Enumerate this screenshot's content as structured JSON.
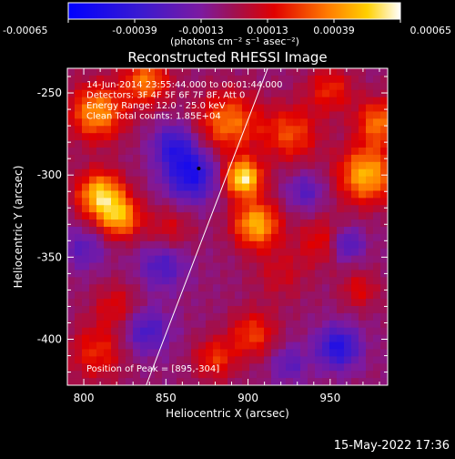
{
  "chart_data": {
    "type": "heatmap",
    "title": "Reconstructed RHESSI Image",
    "xlabel": "Heliocentric X (arcsec)",
    "ylabel": "Heliocentric Y (arcsec)",
    "xlim": [
      790,
      985
    ],
    "ylim": [
      -428,
      -235
    ],
    "x_ticks": [
      "800",
      "850",
      "900",
      "950"
    ],
    "x_tick_values": [
      800,
      850,
      900,
      950
    ],
    "y_ticks": [
      "-250",
      "-300",
      "-350",
      "-400"
    ],
    "y_tick_values": [
      -250,
      -300,
      -350,
      -400
    ],
    "colorbar": {
      "min": -0.00065,
      "max": 0.00065,
      "ticks": [
        "-0.00065",
        "-0.00039",
        "-0.00013",
        "0.00013",
        "0.00039",
        "0.00065"
      ],
      "tick_values": [
        -0.00065,
        -0.00039,
        -0.00013,
        0.00013,
        0.00039,
        0.00065
      ],
      "units": "(photons cm⁻² s⁻¹ asec⁻²)"
    },
    "annotations": [
      "14-Jun-2014 23:55:44.000 to 00:01:44.000",
      "Detectors: 3F 4F 5F 6F 7F 8F, Att 0",
      "Energy Range: 12.0 - 25.0 keV",
      "Clean     Total counts: 1.85E+04"
    ],
    "peak_label": "Position of Peak = [895,-304]",
    "peak_position": [
      895,
      -304
    ],
    "limb_line": [
      [
        838,
        -428
      ],
      [
        912,
        -235
      ]
    ],
    "blobs": [
      {
        "x": 897,
        "y": -302,
        "sigma": 8,
        "value": 0.00065
      },
      {
        "x": 905,
        "y": -330,
        "sigma": 10,
        "value": 0.00052
      },
      {
        "x": 810,
        "y": -312,
        "sigma": 10,
        "value": 0.00056
      },
      {
        "x": 822,
        "y": -326,
        "sigma": 9,
        "value": 0.00046
      },
      {
        "x": 808,
        "y": -262,
        "sigma": 12,
        "value": 0.00046
      },
      {
        "x": 838,
        "y": -243,
        "sigma": 10,
        "value": 0.0004
      },
      {
        "x": 888,
        "y": -268,
        "sigma": 13,
        "value": 0.0004
      },
      {
        "x": 972,
        "y": -300,
        "sigma": 12,
        "value": 0.00052
      },
      {
        "x": 980,
        "y": -268,
        "sigma": 10,
        "value": 0.00039
      },
      {
        "x": 926,
        "y": -275,
        "sigma": 12,
        "value": 0.00032
      },
      {
        "x": 950,
        "y": -248,
        "sigma": 10,
        "value": 0.00026
      },
      {
        "x": 903,
        "y": -397,
        "sigma": 10,
        "value": 0.0003
      },
      {
        "x": 880,
        "y": -412,
        "sigma": 9,
        "value": 0.00028
      },
      {
        "x": 808,
        "y": -408,
        "sigma": 12,
        "value": 0.00026
      },
      {
        "x": 820,
        "y": -380,
        "sigma": 10,
        "value": 0.0002
      },
      {
        "x": 852,
        "y": -333,
        "sigma": 10,
        "value": 0.00018
      },
      {
        "x": 945,
        "y": -340,
        "sigma": 10,
        "value": 0.00022
      },
      {
        "x": 920,
        "y": -360,
        "sigma": 12,
        "value": 0.00015
      },
      {
        "x": 968,
        "y": -370,
        "sigma": 8,
        "value": 0.0002
      },
      {
        "x": 865,
        "y": -300,
        "sigma": 11,
        "value": -0.00045
      },
      {
        "x": 855,
        "y": -282,
        "sigma": 9,
        "value": -0.00032
      },
      {
        "x": 955,
        "y": -405,
        "sigma": 9,
        "value": -0.00042
      },
      {
        "x": 838,
        "y": -395,
        "sigma": 10,
        "value": -0.00028
      },
      {
        "x": 848,
        "y": -355,
        "sigma": 10,
        "value": -0.00026
      },
      {
        "x": 935,
        "y": -310,
        "sigma": 8,
        "value": -0.00022
      },
      {
        "x": 960,
        "y": -342,
        "sigma": 7,
        "value": -0.0003
      },
      {
        "x": 800,
        "y": -345,
        "sigma": 9,
        "value": -0.0002
      },
      {
        "x": 925,
        "y": -415,
        "sigma": 8,
        "value": -0.0002
      }
    ]
  },
  "footer": {
    "timestamp": "15-May-2022 17:36"
  }
}
